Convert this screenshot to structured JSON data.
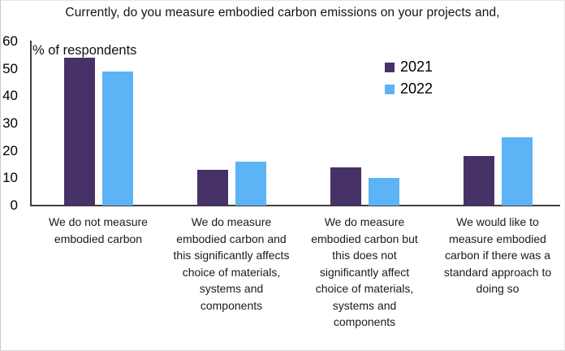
{
  "title": "Currently, do you measure embodied carbon emissions on your projects and,",
  "axis_note": "% of respondents",
  "chart_data": {
    "type": "bar",
    "title": "Currently, do you measure embodied carbon emissions on your projects and,",
    "ylabel": "% of respondents",
    "xlabel": "",
    "ylim": [
      0,
      60
    ],
    "yticks": [
      0,
      10,
      20,
      30,
      40,
      50,
      60
    ],
    "grid": false,
    "legend_position": "top-right-inside",
    "categories": [
      "We do not measure\nembodied carbon",
      "We do measure\nembodied carbon and\nthis significantly affects\nchoice of materials,\nsystems and\ncomponents",
      "We do measure\nembodied carbon but\nthis does not\nsignificantly affect\nchoice of materials,\nsystems and\ncomponents",
      "We would like to\nmeasure embodied\ncarbon if there was a\nstandard approach to\ndoing so"
    ],
    "series": [
      {
        "name": "2021",
        "color": "#463266",
        "values": [
          54,
          13,
          14,
          18
        ]
      },
      {
        "name": "2022",
        "color": "#5CB3F5",
        "values": [
          49,
          16,
          10,
          25
        ]
      }
    ]
  }
}
